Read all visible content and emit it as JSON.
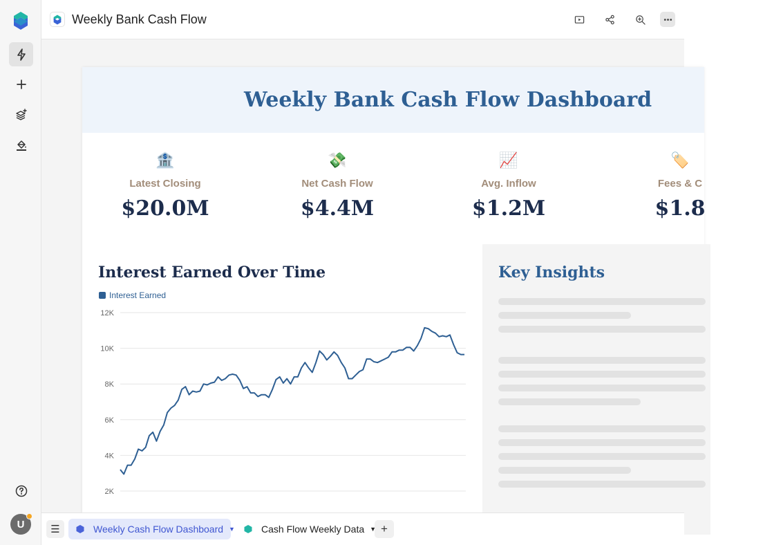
{
  "header": {
    "title": "Weekly Bank Cash Flow",
    "actions": [
      {
        "name": "present-icon"
      },
      {
        "name": "share-icon"
      },
      {
        "name": "zoom-icon"
      },
      {
        "name": "more-icon"
      }
    ]
  },
  "rail": {
    "items": [
      "lightning-icon",
      "plus-icon",
      "layers-add-icon",
      "paint-bucket-icon"
    ],
    "help_icon": "help-icon",
    "avatar_initial": "U"
  },
  "dashboard": {
    "title": "Weekly Bank Cash Flow Dashboard",
    "kpis": [
      {
        "icon": "🏦",
        "label": "Latest Closing",
        "value": "$20.0M"
      },
      {
        "icon": "💸",
        "label": "Net Cash Flow",
        "value": "$4.4M"
      },
      {
        "icon": "📈",
        "label": "Avg. Inflow",
        "value": "$1.2M"
      },
      {
        "icon": "🏷️",
        "label": "Fees & C",
        "value": "$1.8"
      }
    ],
    "insights_title": "Key Insights"
  },
  "chart_data": {
    "type": "line",
    "title": "Interest Earned Over Time",
    "ylim": [
      0,
      12000
    ],
    "y_ticks": [
      "12K",
      "10K",
      "8K",
      "6K",
      "4K",
      "2K"
    ],
    "series": [
      {
        "name": "Interest Earned",
        "color": "#2e5f93",
        "values": [
          3200,
          2950,
          3450,
          3450,
          3800,
          4350,
          4250,
          4450,
          5100,
          5300,
          4800,
          5350,
          5700,
          6400,
          6650,
          6800,
          7100,
          7700,
          7850,
          7400,
          7600,
          7550,
          7600,
          8000,
          7950,
          8050,
          8100,
          8400,
          8200,
          8300,
          8500,
          8550,
          8500,
          8200,
          7750,
          7850,
          7500,
          7500,
          7300,
          7400,
          7400,
          7250,
          7700,
          8250,
          8400,
          8050,
          8300,
          8000,
          8400,
          8400,
          8900,
          9200,
          8900,
          8650,
          9200,
          9850,
          9650,
          9350,
          9550,
          9800,
          9600,
          9200,
          8900,
          8300,
          8300,
          8500,
          8700,
          8800,
          9400,
          9400,
          9250,
          9200,
          9300,
          9400,
          9500,
          9800,
          9800,
          9900,
          9900,
          10050,
          10050,
          9850,
          10150,
          10550,
          11150,
          11100,
          10950,
          10850,
          10650,
          10700,
          10650,
          10750,
          10200,
          9750,
          9650,
          9650
        ]
      }
    ]
  },
  "bottombar": {
    "tabs": [
      {
        "label": "Weekly Cash Flow Dashboard",
        "active": true
      },
      {
        "label": "Cash Flow Weekly Data",
        "active": false
      }
    ]
  }
}
